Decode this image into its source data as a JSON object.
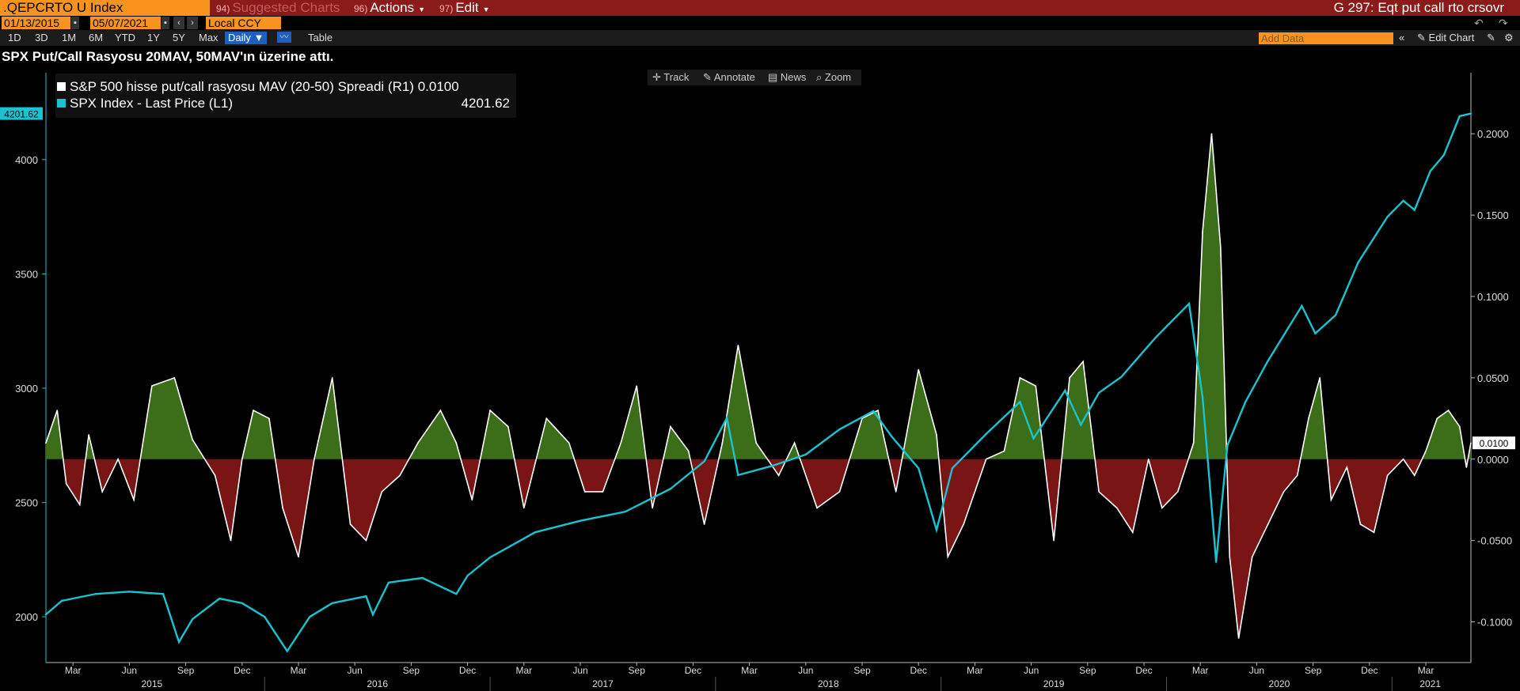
{
  "header": {
    "ticker": ".QEPCRTO U Index",
    "menu": [
      {
        "num": "94)",
        "label": "Suggested Charts",
        "dim": true
      },
      {
        "num": "96)",
        "label": "Actions",
        "dim": false
      },
      {
        "num": "97)",
        "label": "Edit",
        "dim": false
      }
    ],
    "page_title": "G 297: Eqt put call rto crsovr"
  },
  "datebar": {
    "start_date": "01/13/2015",
    "end_date": "05/07/2021",
    "currency": "Local CCY"
  },
  "rangebar": {
    "ranges": [
      "1D",
      "3D",
      "1M",
      "6M",
      "YTD",
      "1Y",
      "5Y",
      "Max"
    ],
    "frequency": "Daily",
    "table_label": "Table",
    "add_data_placeholder": "Add Data",
    "edit_chart_label": "Edit Chart"
  },
  "toolbar": {
    "track": "Track",
    "annotate": "Annotate",
    "news": "News",
    "zoom": "Zoom"
  },
  "chart_data": {
    "type": "line",
    "title": "SPX Put/Call Rasyosu 20MAV, 50MAV'ın üzerine attı.",
    "legend": [
      {
        "name": "S&P 500 hisse put/call rasyosu MAV (20-50) Spreadi (R1)",
        "value": "0.0100",
        "color": "#ffffff",
        "axis": "right"
      },
      {
        "name": "SPX Index - Last Price (L1)",
        "value": "4201.62",
        "color": "#19c3d1",
        "axis": "left"
      }
    ],
    "left_axis": {
      "ticks": [
        "2000",
        "2500",
        "3000",
        "3500",
        "4000"
      ],
      "range": [
        1800,
        4380
      ],
      "current_label": "4201.62"
    },
    "right_axis": {
      "ticks": [
        "-0.1000",
        "-0.0500",
        "0.0000",
        "0.0500",
        "0.1000",
        "0.1500",
        "0.2000"
      ],
      "range": [
        -0.125,
        0.2375
      ],
      "current_label": "0.0100"
    },
    "x_months": [
      {
        "label": "Mar",
        "t": 2015.15
      },
      {
        "label": "Jun",
        "t": 2015.4
      },
      {
        "label": "Sep",
        "t": 2015.65
      },
      {
        "label": "Dec",
        "t": 2015.9
      },
      {
        "label": "Mar",
        "t": 2016.15
      },
      {
        "label": "Jun",
        "t": 2016.4
      },
      {
        "label": "Sep",
        "t": 2016.65
      },
      {
        "label": "Dec",
        "t": 2016.9
      },
      {
        "label": "Mar",
        "t": 2017.15
      },
      {
        "label": "Jun",
        "t": 2017.4
      },
      {
        "label": "Sep",
        "t": 2017.65
      },
      {
        "label": "Dec",
        "t": 2017.9
      },
      {
        "label": "Mar",
        "t": 2018.15
      },
      {
        "label": "Jun",
        "t": 2018.4
      },
      {
        "label": "Sep",
        "t": 2018.65
      },
      {
        "label": "Dec",
        "t": 2018.9
      },
      {
        "label": "Mar",
        "t": 2019.15
      },
      {
        "label": "Jun",
        "t": 2019.4
      },
      {
        "label": "Sep",
        "t": 2019.65
      },
      {
        "label": "Dec",
        "t": 2019.9
      },
      {
        "label": "Mar",
        "t": 2020.15
      },
      {
        "label": "Jun",
        "t": 2020.4
      },
      {
        "label": "Sep",
        "t": 2020.65
      },
      {
        "label": "Dec",
        "t": 2020.9
      },
      {
        "label": "Mar",
        "t": 2021.15
      }
    ],
    "x_years": [
      {
        "label": "2015",
        "t": 2015.5
      },
      {
        "label": "2016",
        "t": 2016.5
      },
      {
        "label": "2017",
        "t": 2017.5
      },
      {
        "label": "2018",
        "t": 2018.5
      },
      {
        "label": "2019",
        "t": 2019.5
      },
      {
        "label": "2020",
        "t": 2020.5
      },
      {
        "label": "2021",
        "t": 2021.17
      }
    ],
    "x_range": [
      2015.03,
      2021.35
    ],
    "spx": [
      [
        2015.03,
        2010
      ],
      [
        2015.1,
        2070
      ],
      [
        2015.25,
        2100
      ],
      [
        2015.4,
        2110
      ],
      [
        2015.55,
        2100
      ],
      [
        2015.62,
        1890
      ],
      [
        2015.68,
        1990
      ],
      [
        2015.8,
        2080
      ],
      [
        2015.9,
        2060
      ],
      [
        2016.0,
        2000
      ],
      [
        2016.1,
        1850
      ],
      [
        2016.2,
        2000
      ],
      [
        2016.3,
        2060
      ],
      [
        2016.45,
        2090
      ],
      [
        2016.48,
        2010
      ],
      [
        2016.55,
        2150
      ],
      [
        2016.7,
        2170
      ],
      [
        2016.85,
        2100
      ],
      [
        2016.9,
        2180
      ],
      [
        2017.0,
        2260
      ],
      [
        2017.2,
        2370
      ],
      [
        2017.4,
        2420
      ],
      [
        2017.6,
        2460
      ],
      [
        2017.8,
        2560
      ],
      [
        2017.95,
        2680
      ],
      [
        2018.05,
        2870
      ],
      [
        2018.1,
        2620
      ],
      [
        2018.25,
        2660
      ],
      [
        2018.4,
        2710
      ],
      [
        2018.55,
        2820
      ],
      [
        2018.7,
        2900
      ],
      [
        2018.78,
        2790
      ],
      [
        2018.9,
        2650
      ],
      [
        2018.98,
        2380
      ],
      [
        2019.05,
        2650
      ],
      [
        2019.2,
        2800
      ],
      [
        2019.35,
        2940
      ],
      [
        2019.41,
        2780
      ],
      [
        2019.55,
        2990
      ],
      [
        2019.62,
        2840
      ],
      [
        2019.7,
        2980
      ],
      [
        2019.8,
        3050
      ],
      [
        2019.95,
        3220
      ],
      [
        2020.1,
        3370
      ],
      [
        2020.16,
        2960
      ],
      [
        2020.22,
        2240
      ],
      [
        2020.27,
        2750
      ],
      [
        2020.35,
        2940
      ],
      [
        2020.45,
        3120
      ],
      [
        2020.6,
        3360
      ],
      [
        2020.66,
        3240
      ],
      [
        2020.75,
        3320
      ],
      [
        2020.85,
        3550
      ],
      [
        2020.98,
        3750
      ],
      [
        2021.05,
        3820
      ],
      [
        2021.1,
        3780
      ],
      [
        2021.17,
        3950
      ],
      [
        2021.23,
        4020
      ],
      [
        2021.3,
        4190
      ],
      [
        2021.35,
        4201.62
      ]
    ],
    "spread": [
      [
        2015.03,
        0.01
      ],
      [
        2015.08,
        0.03
      ],
      [
        2015.12,
        -0.015
      ],
      [
        2015.18,
        -0.028
      ],
      [
        2015.22,
        0.015
      ],
      [
        2015.28,
        -0.02
      ],
      [
        2015.35,
        0.0
      ],
      [
        2015.42,
        -0.025
      ],
      [
        2015.5,
        0.045
      ],
      [
        2015.6,
        0.05
      ],
      [
        2015.68,
        0.012
      ],
      [
        2015.78,
        -0.01
      ],
      [
        2015.85,
        -0.05
      ],
      [
        2015.9,
        0.0
      ],
      [
        2015.95,
        0.03
      ],
      [
        2016.02,
        0.025
      ],
      [
        2016.08,
        -0.03
      ],
      [
        2016.15,
        -0.06
      ],
      [
        2016.22,
        0.0
      ],
      [
        2016.3,
        0.05
      ],
      [
        2016.38,
        -0.04
      ],
      [
        2016.45,
        -0.05
      ],
      [
        2016.52,
        -0.02
      ],
      [
        2016.6,
        -0.01
      ],
      [
        2016.68,
        0.01
      ],
      [
        2016.78,
        0.03
      ],
      [
        2016.85,
        0.01
      ],
      [
        2016.92,
        -0.025
      ],
      [
        2017.0,
        0.03
      ],
      [
        2017.08,
        0.02
      ],
      [
        2017.15,
        -0.03
      ],
      [
        2017.25,
        0.025
      ],
      [
        2017.35,
        0.01
      ],
      [
        2017.42,
        -0.02
      ],
      [
        2017.5,
        -0.02
      ],
      [
        2017.58,
        0.01
      ],
      [
        2017.65,
        0.045
      ],
      [
        2017.72,
        -0.03
      ],
      [
        2017.8,
        0.02
      ],
      [
        2017.88,
        0.005
      ],
      [
        2017.95,
        -0.04
      ],
      [
        2018.03,
        0.01
      ],
      [
        2018.1,
        0.07
      ],
      [
        2018.18,
        0.01
      ],
      [
        2018.28,
        -0.01
      ],
      [
        2018.35,
        0.01
      ],
      [
        2018.45,
        -0.03
      ],
      [
        2018.55,
        -0.02
      ],
      [
        2018.65,
        0.025
      ],
      [
        2018.72,
        0.03
      ],
      [
        2018.8,
        -0.02
      ],
      [
        2018.9,
        0.055
      ],
      [
        2018.98,
        0.015
      ],
      [
        2019.03,
        -0.06
      ],
      [
        2019.1,
        -0.04
      ],
      [
        2019.2,
        0.0
      ],
      [
        2019.28,
        0.005
      ],
      [
        2019.35,
        0.05
      ],
      [
        2019.42,
        0.045
      ],
      [
        2019.5,
        -0.05
      ],
      [
        2019.57,
        0.05
      ],
      [
        2019.63,
        0.06
      ],
      [
        2019.7,
        -0.02
      ],
      [
        2019.78,
        -0.03
      ],
      [
        2019.85,
        -0.045
      ],
      [
        2019.92,
        0.0
      ],
      [
        2019.98,
        -0.03
      ],
      [
        2020.05,
        -0.02
      ],
      [
        2020.12,
        0.01
      ],
      [
        2020.16,
        0.14
      ],
      [
        2020.2,
        0.2
      ],
      [
        2020.24,
        0.13
      ],
      [
        2020.28,
        -0.06
      ],
      [
        2020.32,
        -0.11
      ],
      [
        2020.38,
        -0.06
      ],
      [
        2020.45,
        -0.04
      ],
      [
        2020.52,
        -0.02
      ],
      [
        2020.58,
        -0.01
      ],
      [
        2020.63,
        0.025
      ],
      [
        2020.68,
        0.05
      ],
      [
        2020.73,
        -0.025
      ],
      [
        2020.8,
        -0.005
      ],
      [
        2020.86,
        -0.04
      ],
      [
        2020.92,
        -0.045
      ],
      [
        2020.98,
        -0.01
      ],
      [
        2021.05,
        0.0
      ],
      [
        2021.1,
        -0.01
      ],
      [
        2021.15,
        0.005
      ],
      [
        2021.2,
        0.025
      ],
      [
        2021.25,
        0.03
      ],
      [
        2021.3,
        0.02
      ],
      [
        2021.33,
        -0.005
      ],
      [
        2021.35,
        0.01
      ]
    ],
    "colors": {
      "positive_fill": "#3c6e1a",
      "negative_fill": "#7a1515",
      "spx_line": "#19c3d1",
      "spread_line": "#ffffff",
      "axis": "#19c3d1"
    }
  }
}
